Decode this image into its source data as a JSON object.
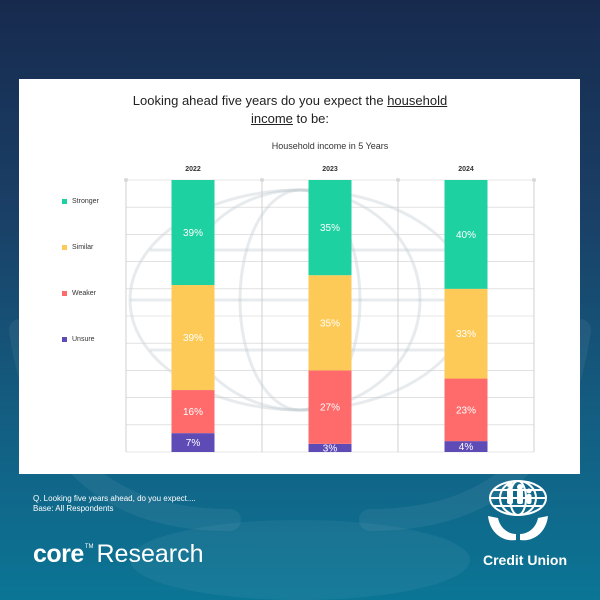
{
  "question": {
    "before": "Looking ahead five years do you expect the ",
    "underlined_1": "household",
    "underlined_2": "income",
    "after": " to be:"
  },
  "footnote": {
    "line1": "Q. Looking five years ahead, do you expect....",
    "line2": "Base: All Respondents"
  },
  "branding": {
    "core_word": "core",
    "core_tm": "TM",
    "core_research": "Research",
    "credit_union": "Credit Union"
  },
  "colors": {
    "stronger": "#1dd1a1",
    "similar": "#feca57",
    "weaker": "#ff6b6b",
    "unsure": "#5f4bb6",
    "background_top": "#172a4e",
    "background_bottom": "#0b7595"
  },
  "chart_data": {
    "type": "bar",
    "stacked": true,
    "title": "Household income in 5 Years",
    "categories": [
      "2022",
      "2023",
      "2024"
    ],
    "series": [
      {
        "name": "Stronger",
        "values": [
          39,
          35,
          40
        ],
        "labels": [
          "39%",
          "35%",
          "40%"
        ]
      },
      {
        "name": "Similar",
        "values": [
          39,
          35,
          33
        ],
        "labels": [
          "39%",
          "35%",
          "33%"
        ]
      },
      {
        "name": "Weaker",
        "values": [
          16,
          27,
          23
        ],
        "labels": [
          "16%",
          "27%",
          "23%"
        ]
      },
      {
        "name": "Unsure",
        "values": [
          7,
          3,
          4
        ],
        "labels": [
          "7%",
          "3%",
          "4%"
        ]
      }
    ],
    "ylim": [
      0,
      100
    ],
    "grid": true,
    "legend_position": "left"
  }
}
